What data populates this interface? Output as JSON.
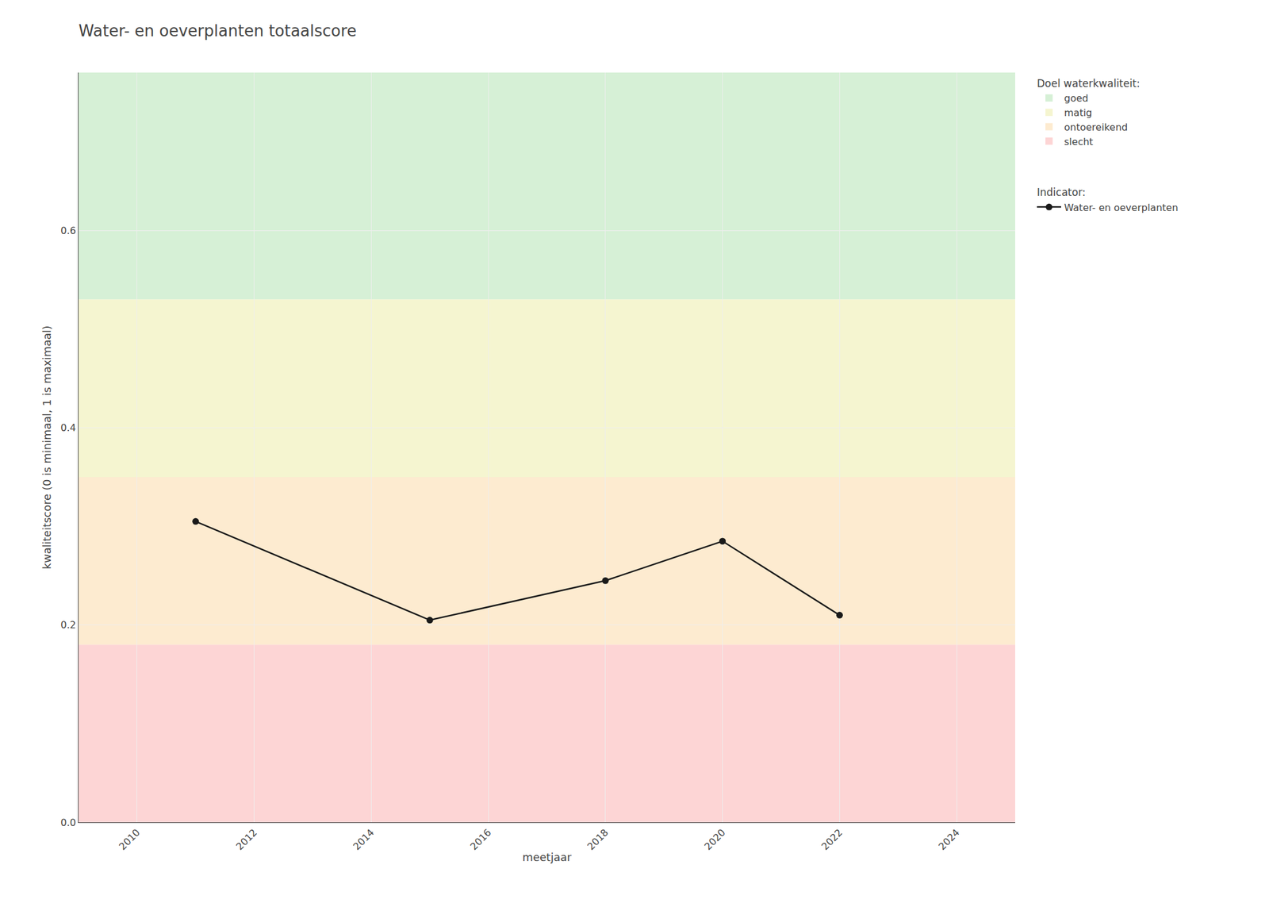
{
  "chart_data": {
    "type": "line",
    "title": "Water- en oeverplanten totaalscore",
    "x_label": "meetjaar",
    "y_label": "kwaliteitscore (0 is minimaal, 1 is maximaal)",
    "x": [
      2011,
      2015,
      2018,
      2020,
      2022
    ],
    "series": [
      {
        "name": "Water- en oeverplanten",
        "color": "#1a1a1a",
        "marker": "circle",
        "values": [
          0.305,
          0.205,
          0.245,
          0.285,
          0.21
        ]
      }
    ],
    "series_title": "Indicator:",
    "bands_title": "Doel waterkwaliteit:",
    "bands": [
      {
        "name": "goed",
        "color": "#d6f0d6",
        "range": [
          0.53,
          0.76
        ]
      },
      {
        "name": "matig",
        "color": "#f5f5d0",
        "range": [
          0.35,
          0.53
        ]
      },
      {
        "name": "ontoereikend",
        "color": "#fdebd0",
        "range": [
          0.18,
          0.35
        ]
      },
      {
        "name": "slecht",
        "color": "#fdd5d5",
        "range": [
          0.0,
          0.18
        ]
      }
    ],
    "xlim": [
      2009,
      2025
    ],
    "ylim": [
      0.0,
      0.76
    ],
    "xticks": [
      2010,
      2012,
      2014,
      2016,
      2018,
      2020,
      2022,
      2024
    ],
    "yticks": [
      {
        "value": 0.0,
        "label": "0.0"
      },
      0.2,
      0.4,
      0.6
    ],
    "grid": true,
    "legend": "right"
  }
}
